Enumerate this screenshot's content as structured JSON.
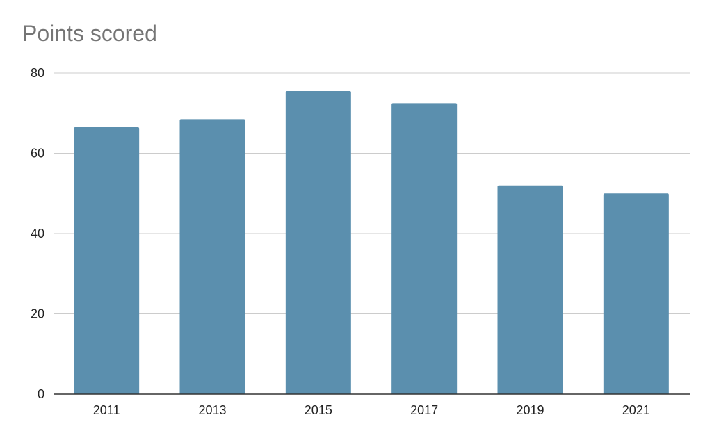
{
  "chart_data": {
    "type": "bar",
    "title": "Points scored",
    "xlabel": "",
    "ylabel": "",
    "categories": [
      "2011",
      "2013",
      "2015",
      "2017",
      "2019",
      "2021"
    ],
    "values": [
      66.5,
      68.5,
      75.5,
      72.5,
      52,
      50
    ],
    "ylim": [
      0,
      80
    ],
    "yticks": [
      0,
      20,
      40,
      60,
      80
    ],
    "grid": true,
    "legend": "none",
    "bar_color": "#5b8fae",
    "gridline_color": "#cccccc",
    "axis_color": "#333333"
  }
}
